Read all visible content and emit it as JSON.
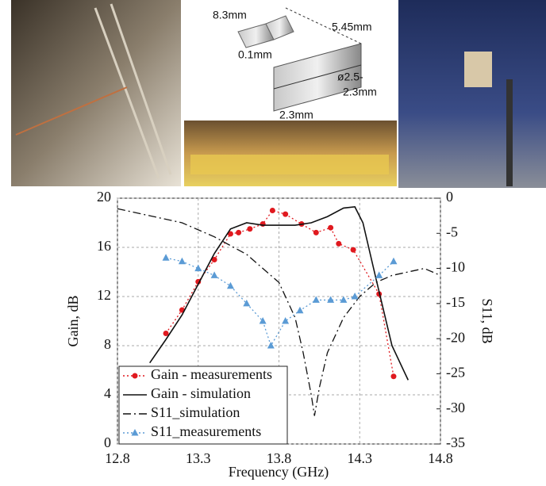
{
  "photo_labels": [
    "8.3mm",
    "0.1mm",
    "5.45mm",
    "ø2.5-",
    "2.3mm",
    "2.3mm"
  ],
  "chart_data": {
    "type": "line",
    "xlabel": "Frequency (GHz)",
    "ylabel": "Gain, dB",
    "y2label": "S11, dB",
    "xlim": [
      12.8,
      14.8
    ],
    "xticks": [
      12.8,
      13.3,
      13.8,
      14.3,
      14.8
    ],
    "ylim": [
      0,
      20
    ],
    "yticks": [
      0,
      4,
      8,
      12,
      16,
      20
    ],
    "y2lim": [
      -35,
      0
    ],
    "y2ticks": [
      -35,
      -30,
      -25,
      -20,
      -15,
      -10,
      -5,
      0
    ],
    "grid": true,
    "legend": "lower left",
    "series": [
      {
        "name": "Gain - measurements",
        "color": "#e0191f",
        "line_style": "dotted",
        "marker": "circle",
        "x": [
          13.1,
          13.2,
          13.3,
          13.4,
          13.5,
          13.55,
          13.62,
          13.7,
          13.76,
          13.84,
          13.94,
          14.03,
          14.12,
          14.17,
          14.26,
          14.42,
          14.51
        ],
        "values": [
          9.0,
          10.9,
          13.2,
          15.0,
          17.1,
          17.2,
          17.5,
          17.9,
          19.0,
          18.7,
          17.9,
          17.2,
          17.6,
          16.3,
          15.8,
          12.2,
          5.5
        ]
      },
      {
        "name": "Gain - simulation",
        "color": "#111111",
        "line_style": "solid",
        "marker": "none",
        "x": [
          13.0,
          13.1,
          13.2,
          13.3,
          13.4,
          13.5,
          13.6,
          13.7,
          13.8,
          13.9,
          14.0,
          14.1,
          14.2,
          14.27,
          14.32,
          14.4,
          14.5,
          14.6
        ],
        "values": [
          6.6,
          8.5,
          10.5,
          13.0,
          15.5,
          17.5,
          18.0,
          17.8,
          17.8,
          17.8,
          18.0,
          18.5,
          19.2,
          19.3,
          18.0,
          13.5,
          8.0,
          5.2
        ]
      },
      {
        "name": "S11_simulation",
        "color": "#111111",
        "line_style": "dashdot",
        "marker": "none",
        "axis": "y2",
        "x": [
          12.8,
          13.0,
          13.2,
          13.4,
          13.6,
          13.8,
          13.9,
          13.95,
          14.0,
          14.02,
          14.05,
          14.1,
          14.2,
          14.3,
          14.4,
          14.5,
          14.6,
          14.7,
          14.75,
          14.8
        ],
        "values": [
          -1.5,
          -2.5,
          -3.5,
          -5.5,
          -8,
          -12,
          -17,
          -22,
          -28,
          -31,
          -27,
          -22,
          -17,
          -14,
          -12,
          -11,
          -10.5,
          -10,
          -10.5,
          -11
        ]
      },
      {
        "name": "S11_measurements",
        "color": "#5b9bd5",
        "line_style": "dotted",
        "marker": "triangle",
        "axis": "y2",
        "x": [
          13.1,
          13.2,
          13.3,
          13.4,
          13.5,
          13.6,
          13.7,
          13.75,
          13.84,
          13.93,
          14.03,
          14.12,
          14.2,
          14.27,
          14.42,
          14.51
        ],
        "values": [
          -8.5,
          -9,
          -10,
          -11,
          -12.5,
          -15,
          -17.5,
          -21,
          -17.5,
          -16,
          -14.5,
          -14.5,
          -14.5,
          -14,
          -11,
          -9
        ]
      }
    ]
  }
}
